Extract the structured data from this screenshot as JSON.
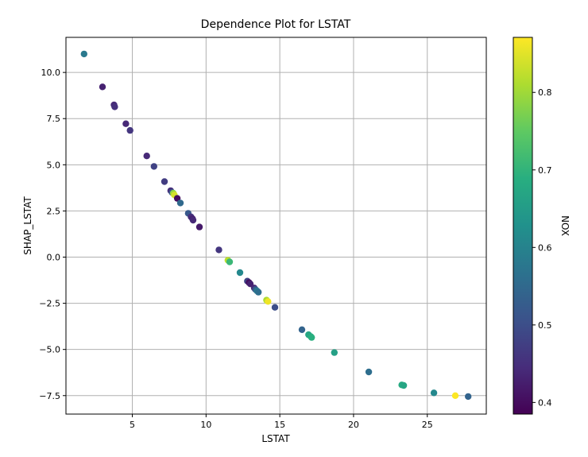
{
  "chart_data": {
    "type": "scatter",
    "title": "Dependence Plot for LSTAT",
    "xlabel": "LSTAT",
    "ylabel": "SHAP_LSTAT",
    "xlim": [
      0.5,
      29.0
    ],
    "ylim": [
      -8.5,
      11.9
    ],
    "xticks": [
      "5",
      "10",
      "15",
      "20",
      "25"
    ],
    "yticks": [
      "−7.5",
      "−5.0",
      "−2.5",
      "0.0",
      "2.5",
      "5.0",
      "7.5",
      "10.0"
    ],
    "grid": true,
    "colormap": "viridis",
    "colorbar": {
      "label": "NOX",
      "range": [
        0.385,
        0.871
      ],
      "ticks": [
        "0.4",
        "0.5",
        "0.6",
        "0.7",
        "0.8"
      ]
    },
    "points": [
      {
        "x": 1.73,
        "y": 11.0,
        "c": 0.58
      },
      {
        "x": 2.98,
        "y": 9.22,
        "c": 0.43
      },
      {
        "x": 3.76,
        "y": 8.24,
        "c": 0.44
      },
      {
        "x": 3.81,
        "y": 8.14,
        "c": 0.45
      },
      {
        "x": 4.56,
        "y": 7.22,
        "c": 0.44
      },
      {
        "x": 4.85,
        "y": 6.86,
        "c": 0.46
      },
      {
        "x": 5.98,
        "y": 5.48,
        "c": 0.44
      },
      {
        "x": 6.47,
        "y": 4.91,
        "c": 0.48
      },
      {
        "x": 7.18,
        "y": 4.09,
        "c": 0.47
      },
      {
        "x": 7.6,
        "y": 3.6,
        "c": 0.45
      },
      {
        "x": 7.7,
        "y": 3.5,
        "c": 0.51
      },
      {
        "x": 7.78,
        "y": 3.46,
        "c": 0.79
      },
      {
        "x": 7.85,
        "y": 3.37,
        "c": 0.84
      },
      {
        "x": 8.05,
        "y": 3.18,
        "c": 0.4
      },
      {
        "x": 8.26,
        "y": 2.93,
        "c": 0.55
      },
      {
        "x": 8.79,
        "y": 2.37,
        "c": 0.52
      },
      {
        "x": 8.98,
        "y": 2.18,
        "c": 0.45
      },
      {
        "x": 9.08,
        "y": 2.08,
        "c": 0.43
      },
      {
        "x": 9.12,
        "y": 2.0,
        "c": 0.44
      },
      {
        "x": 9.55,
        "y": 1.63,
        "c": 0.42
      },
      {
        "x": 10.87,
        "y": 0.39,
        "c": 0.46
      },
      {
        "x": 11.48,
        "y": -0.17,
        "c": 0.82
      },
      {
        "x": 11.6,
        "y": -0.26,
        "c": 0.71
      },
      {
        "x": 12.3,
        "y": -0.84,
        "c": 0.61
      },
      {
        "x": 12.8,
        "y": -1.3,
        "c": 0.48
      },
      {
        "x": 12.92,
        "y": -1.38,
        "c": 0.4
      },
      {
        "x": 13.0,
        "y": -1.45,
        "c": 0.43
      },
      {
        "x": 13.27,
        "y": -1.67,
        "c": 0.44
      },
      {
        "x": 13.35,
        "y": -1.75,
        "c": 0.52
      },
      {
        "x": 13.45,
        "y": -1.83,
        "c": 0.58
      },
      {
        "x": 13.55,
        "y": -1.9,
        "c": 0.56
      },
      {
        "x": 14.1,
        "y": -2.33,
        "c": 0.81
      },
      {
        "x": 14.2,
        "y": -2.4,
        "c": 0.86
      },
      {
        "x": 14.67,
        "y": -2.72,
        "c": 0.5
      },
      {
        "x": 16.5,
        "y": -3.93,
        "c": 0.54
      },
      {
        "x": 16.95,
        "y": -4.2,
        "c": 0.67
      },
      {
        "x": 17.1,
        "y": -4.3,
        "c": 0.68
      },
      {
        "x": 17.16,
        "y": -4.35,
        "c": 0.69
      },
      {
        "x": 18.7,
        "y": -5.17,
        "c": 0.66
      },
      {
        "x": 21.03,
        "y": -6.22,
        "c": 0.56
      },
      {
        "x": 23.27,
        "y": -6.92,
        "c": 0.68
      },
      {
        "x": 23.4,
        "y": -6.95,
        "c": 0.67
      },
      {
        "x": 25.45,
        "y": -7.35,
        "c": 0.61
      },
      {
        "x": 26.9,
        "y": -7.5,
        "c": 0.87
      },
      {
        "x": 27.77,
        "y": -7.55,
        "c": 0.54
      }
    ]
  }
}
